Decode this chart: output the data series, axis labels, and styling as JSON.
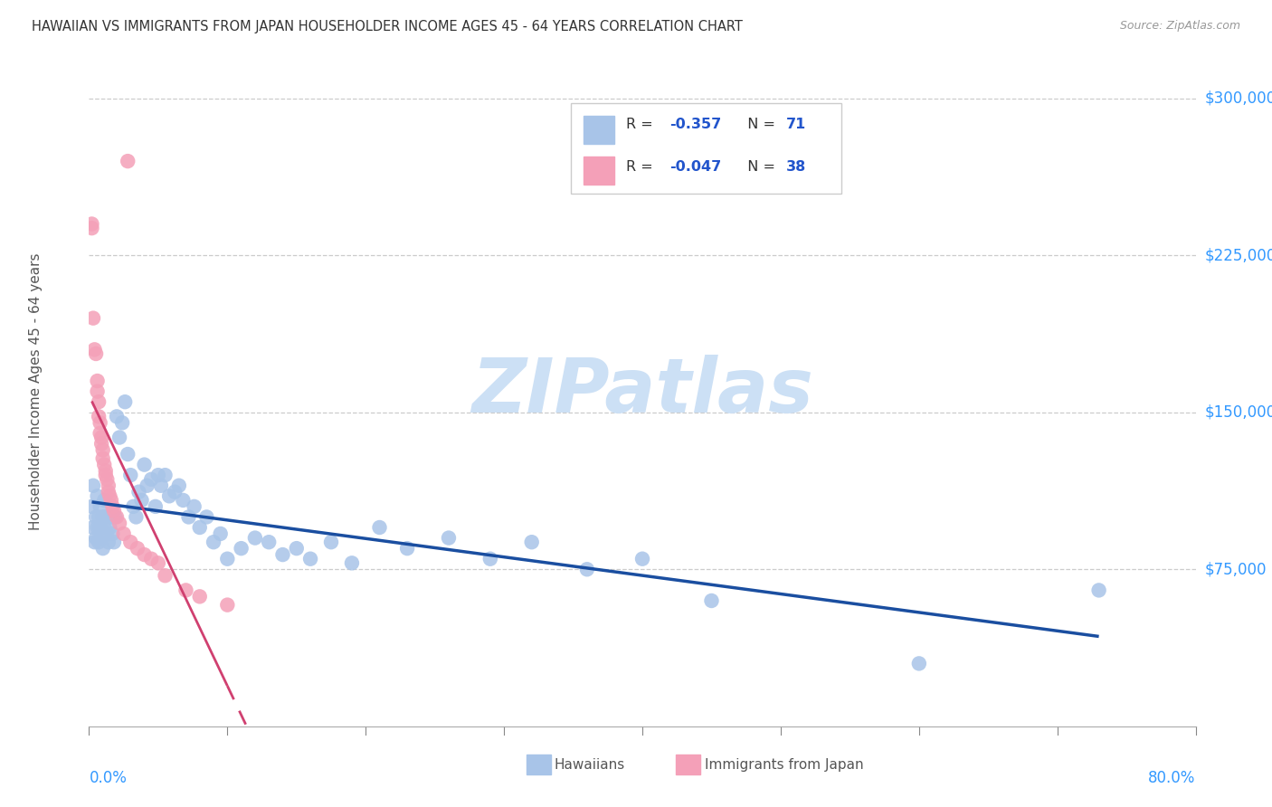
{
  "title": "HAWAIIAN VS IMMIGRANTS FROM JAPAN HOUSEHOLDER INCOME AGES 45 - 64 YEARS CORRELATION CHART",
  "source": "Source: ZipAtlas.com",
  "ylabel": "Householder Income Ages 45 - 64 years",
  "yaxis_labels": [
    "$300,000",
    "$225,000",
    "$150,000",
    "$75,000"
  ],
  "yaxis_values": [
    300000,
    225000,
    150000,
    75000
  ],
  "xmin": 0.0,
  "xmax": 0.8,
  "ymin": 0,
  "ymax": 320000,
  "hawaiians_color": "#a8c4e8",
  "japan_color": "#f4a0b8",
  "trend_hawaii_color": "#1a4ea0",
  "trend_japan_color": "#d04070",
  "watermark_color": "#cce0f5",
  "legend_r_hawaii": "-0.357",
  "legend_n_hawaii": "71",
  "legend_r_japan": "-0.047",
  "legend_n_japan": "38",
  "hawaiians_x": [
    0.002,
    0.003,
    0.003,
    0.004,
    0.005,
    0.005,
    0.006,
    0.006,
    0.007,
    0.007,
    0.008,
    0.008,
    0.009,
    0.01,
    0.01,
    0.011,
    0.011,
    0.012,
    0.013,
    0.014,
    0.015,
    0.016,
    0.017,
    0.018,
    0.019,
    0.02,
    0.022,
    0.024,
    0.026,
    0.028,
    0.03,
    0.032,
    0.034,
    0.036,
    0.038,
    0.04,
    0.042,
    0.045,
    0.048,
    0.05,
    0.052,
    0.055,
    0.058,
    0.062,
    0.065,
    0.068,
    0.072,
    0.076,
    0.08,
    0.085,
    0.09,
    0.095,
    0.1,
    0.11,
    0.12,
    0.13,
    0.14,
    0.15,
    0.16,
    0.175,
    0.19,
    0.21,
    0.23,
    0.26,
    0.29,
    0.32,
    0.36,
    0.4,
    0.45,
    0.6,
    0.73
  ],
  "hawaiians_y": [
    105000,
    95000,
    115000,
    88000,
    100000,
    90000,
    95000,
    110000,
    100000,
    88000,
    95000,
    105000,
    90000,
    100000,
    85000,
    95000,
    108000,
    100000,
    92000,
    88000,
    95000,
    100000,
    92000,
    88000,
    100000,
    148000,
    138000,
    145000,
    155000,
    130000,
    120000,
    105000,
    100000,
    112000,
    108000,
    125000,
    115000,
    118000,
    105000,
    120000,
    115000,
    120000,
    110000,
    112000,
    115000,
    108000,
    100000,
    105000,
    95000,
    100000,
    88000,
    92000,
    80000,
    85000,
    90000,
    88000,
    82000,
    85000,
    80000,
    88000,
    78000,
    95000,
    85000,
    90000,
    80000,
    88000,
    75000,
    80000,
    60000,
    30000,
    65000
  ],
  "japan_x": [
    0.002,
    0.002,
    0.003,
    0.004,
    0.005,
    0.006,
    0.006,
    0.007,
    0.007,
    0.008,
    0.008,
    0.009,
    0.009,
    0.01,
    0.01,
    0.011,
    0.012,
    0.012,
    0.013,
    0.014,
    0.014,
    0.015,
    0.016,
    0.017,
    0.018,
    0.02,
    0.022,
    0.025,
    0.028,
    0.03,
    0.035,
    0.04,
    0.045,
    0.05,
    0.055,
    0.07,
    0.08,
    0.1
  ],
  "japan_y": [
    240000,
    238000,
    195000,
    180000,
    178000,
    165000,
    160000,
    155000,
    148000,
    145000,
    140000,
    138000,
    135000,
    132000,
    128000,
    125000,
    122000,
    120000,
    118000,
    115000,
    112000,
    110000,
    108000,
    105000,
    103000,
    100000,
    97000,
    92000,
    270000,
    88000,
    85000,
    82000,
    80000,
    78000,
    72000,
    65000,
    62000,
    58000
  ]
}
